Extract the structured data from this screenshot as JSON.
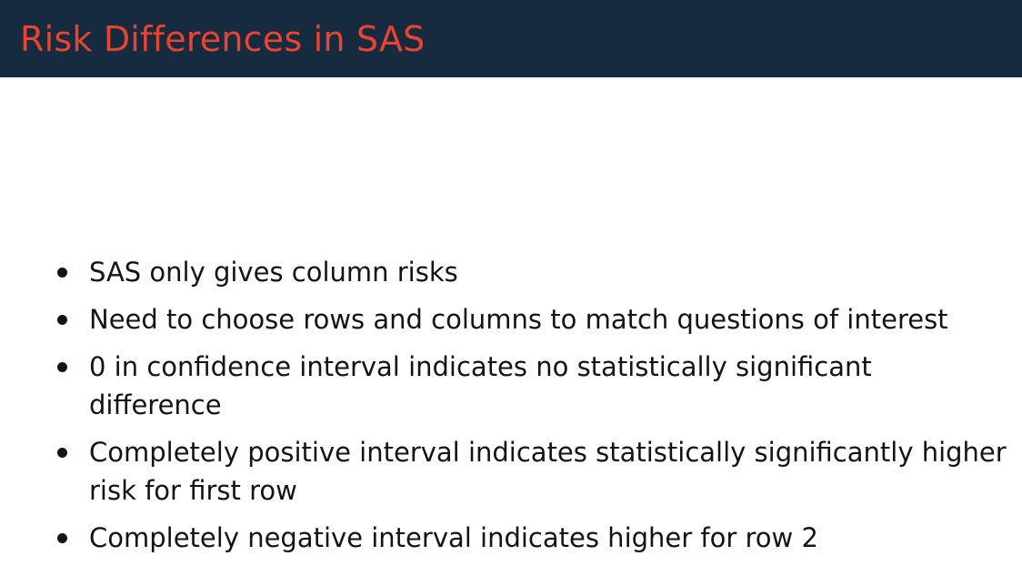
{
  "slide": {
    "title": "Risk Differences in SAS",
    "colors": {
      "header_background": "#162a40",
      "title_text": "#e8442f",
      "body_text": "#141414"
    },
    "bullets": [
      "SAS only gives column risks",
      "Need to choose rows and columns to match questions of interest",
      "0 in confidence interval indicates no statistically significant difference",
      "Completely positive interval indicates statistically significantly higher risk for first row",
      "Completely negative interval indicates higher for row 2"
    ]
  }
}
